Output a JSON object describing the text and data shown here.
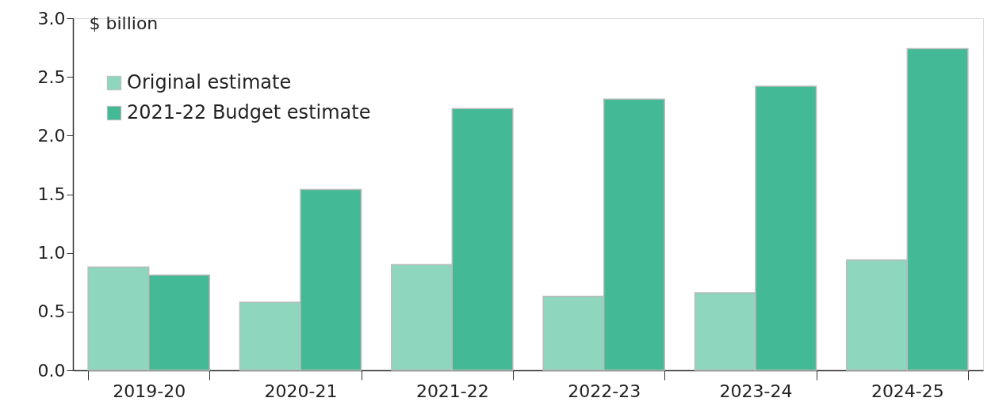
{
  "chart_data": {
    "type": "bar",
    "ylabel": "$ billion",
    "categories": [
      "2019-20",
      "2020-21",
      "2021-22",
      "2022-23",
      "2023-24",
      "2024-25"
    ],
    "series": [
      {
        "name": "Original estimate",
        "color": "#8ed6be",
        "values": [
          0.88,
          0.58,
          0.9,
          0.63,
          0.66,
          0.94
        ]
      },
      {
        "name": "2021-22 Budget estimate",
        "color": "#43b995",
        "values": [
          0.81,
          1.54,
          2.23,
          2.31,
          2.42,
          2.74
        ]
      }
    ],
    "ylim": [
      0,
      3.0
    ],
    "yticks": [
      {
        "value": 0,
        "label": "0.0"
      },
      {
        "value": 0.5,
        "label": "0.5"
      },
      {
        "value": 1,
        "label": "1.0"
      },
      {
        "value": 1.5,
        "label": "1.5"
      },
      {
        "value": 2,
        "label": "2.0"
      },
      {
        "value": 2.5,
        "label": "2.5"
      },
      {
        "value": 3,
        "label": "3.0"
      }
    ],
    "grid": false,
    "legend": "top left"
  }
}
